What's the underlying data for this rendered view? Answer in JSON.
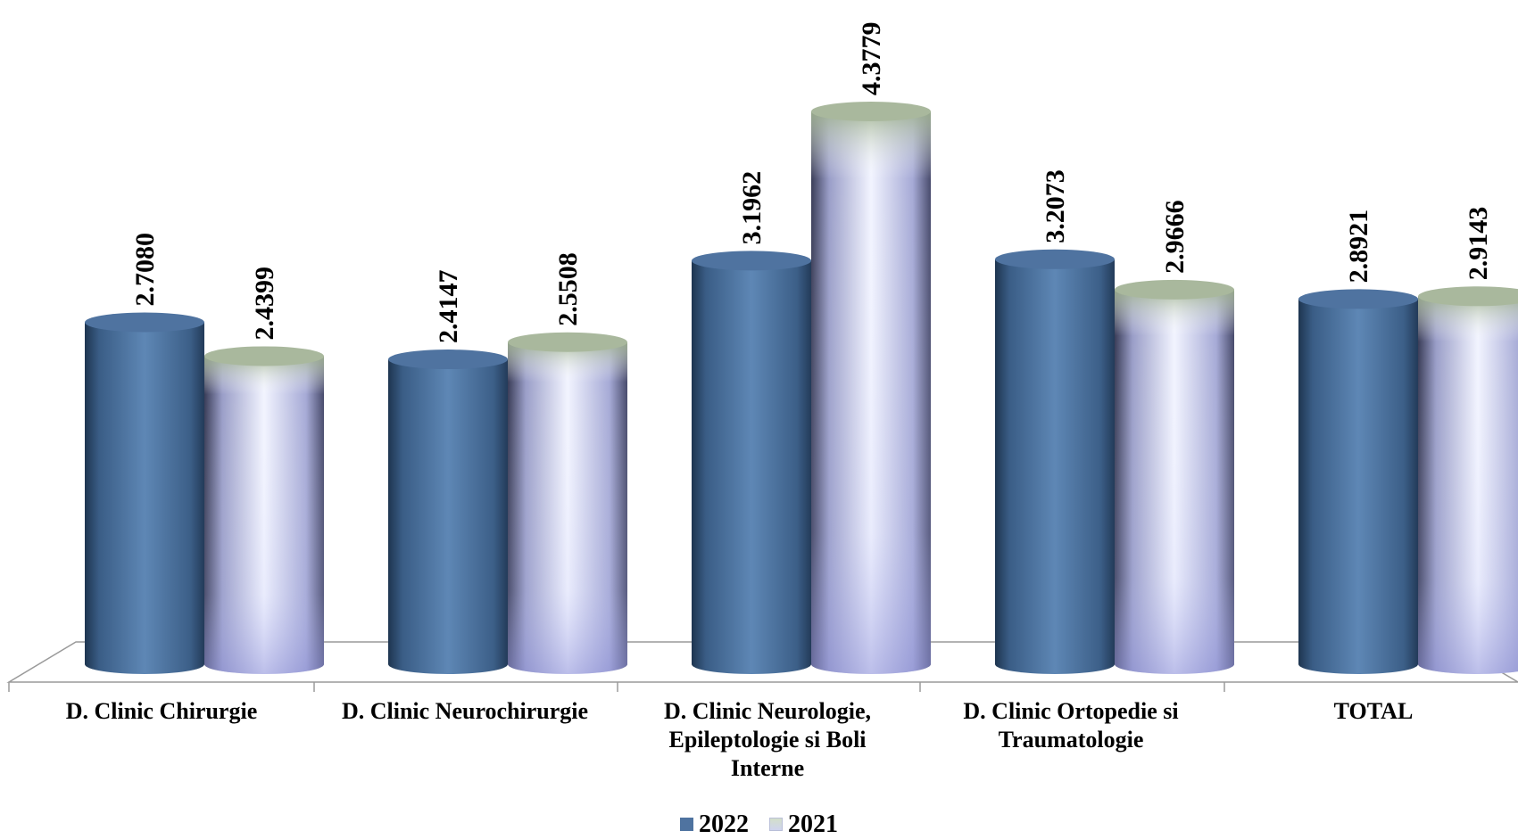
{
  "chart_data": {
    "type": "bar",
    "categories": [
      "D. Clinic Chirurgie",
      "D. Clinic Neurochirurgie",
      "D. Clinic Neurologie, Epileptologie si Boli Interne",
      "D. Clinic Ortopedie si Traumatologie",
      "TOTAL"
    ],
    "series": [
      {
        "name": "2022",
        "values": [
          2.708,
          2.4147,
          3.1962,
          3.2073,
          2.8921
        ],
        "labels": [
          "2.7080",
          "2.4147",
          "3.1962",
          "3.2073",
          "2.8921"
        ],
        "color": "#4f73a0"
      },
      {
        "name": "2021",
        "values": [
          2.4399,
          2.5508,
          4.3779,
          2.9666,
          2.9143
        ],
        "labels": [
          "2.4399",
          "2.5508",
          "4.3779",
          "2.9666",
          "2.9143"
        ],
        "color": "#cdd3f3"
      }
    ],
    "ylim": [
      0,
      4.4
    ],
    "grid": false,
    "legend_position": "bottom",
    "data_labels": "rotated vertical above bars"
  }
}
